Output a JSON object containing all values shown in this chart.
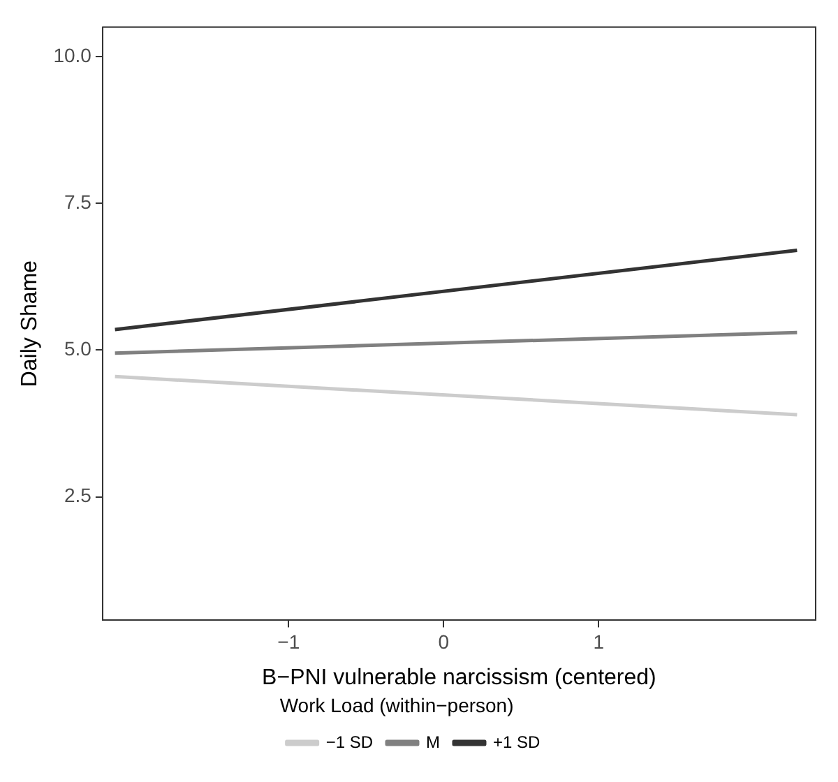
{
  "chart_data": {
    "type": "line",
    "xlabel": "B−PNI vulnerable narcissism (centered)",
    "ylabel": "Daily Shame",
    "legend_title": "Work Load (within−person)",
    "legend": "bottom",
    "grid": false,
    "marker": "none",
    "x": [
      -2.12,
      2.28
    ],
    "series": [
      {
        "name": "−1 SD",
        "color": "#cccccc",
        "values": [
          4.55,
          3.9
        ]
      },
      {
        "name": "M",
        "color": "#808080",
        "values": [
          4.95,
          5.3
        ]
      },
      {
        "name": "+1 SD",
        "color": "#333333",
        "values": [
          5.35,
          6.7
        ]
      }
    ],
    "xlim": [
      -2.2,
      2.4
    ],
    "xticks": [
      {
        "value": -1,
        "label": "−1"
      },
      0,
      1
    ],
    "ylim": [
      0.4,
      10.5
    ],
    "yticks": [
      {
        "value": 2.5,
        "label": "2.5"
      },
      {
        "value": 5,
        "label": "5.0"
      },
      {
        "value": 7.5,
        "label": "7.5"
      },
      {
        "value": 10,
        "label": "10.0"
      }
    ]
  }
}
